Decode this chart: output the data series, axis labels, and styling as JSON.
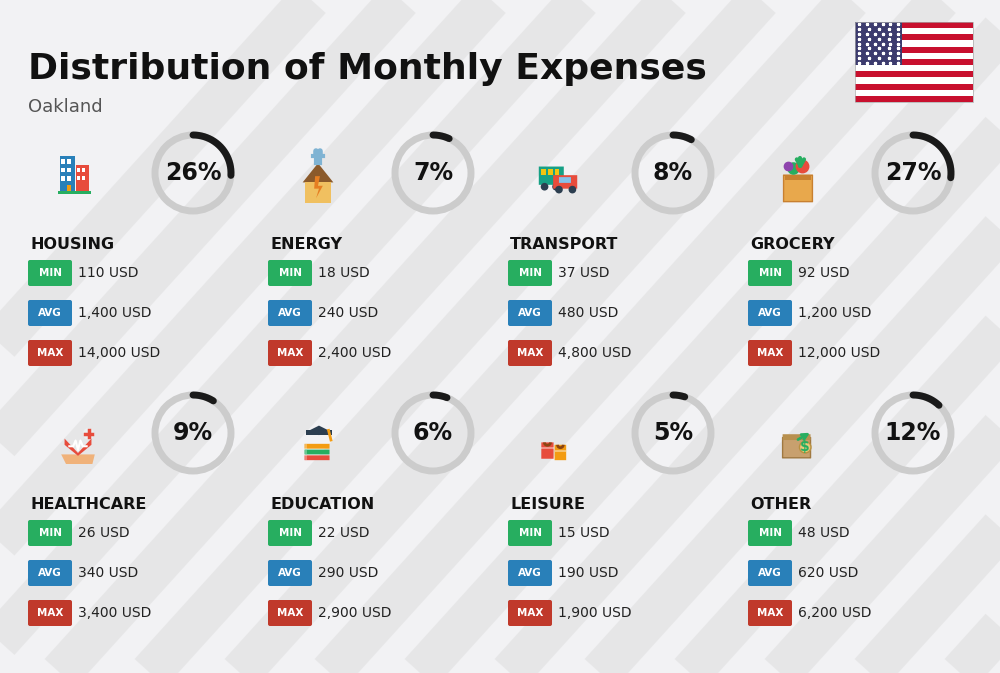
{
  "title": "Distribution of Monthly Expenses",
  "subtitle": "Oakland",
  "background_color": "#f2f2f4",
  "categories": [
    {
      "name": "HOUSING",
      "percent": 26,
      "min_val": "110 USD",
      "avg_val": "1,400 USD",
      "max_val": "14,000 USD",
      "row": 0,
      "col": 0
    },
    {
      "name": "ENERGY",
      "percent": 7,
      "min_val": "18 USD",
      "avg_val": "240 USD",
      "max_val": "2,400 USD",
      "row": 0,
      "col": 1
    },
    {
      "name": "TRANSPORT",
      "percent": 8,
      "min_val": "37 USD",
      "avg_val": "480 USD",
      "max_val": "4,800 USD",
      "row": 0,
      "col": 2
    },
    {
      "name": "GROCERY",
      "percent": 27,
      "min_val": "92 USD",
      "avg_val": "1,200 USD",
      "max_val": "12,000 USD",
      "row": 0,
      "col": 3
    },
    {
      "name": "HEALTHCARE",
      "percent": 9,
      "min_val": "26 USD",
      "avg_val": "340 USD",
      "max_val": "3,400 USD",
      "row": 1,
      "col": 0
    },
    {
      "name": "EDUCATION",
      "percent": 6,
      "min_val": "22 USD",
      "avg_val": "290 USD",
      "max_val": "2,900 USD",
      "row": 1,
      "col": 1
    },
    {
      "name": "LEISURE",
      "percent": 5,
      "min_val": "15 USD",
      "avg_val": "190 USD",
      "max_val": "1,900 USD",
      "row": 1,
      "col": 2
    },
    {
      "name": "OTHER",
      "percent": 12,
      "min_val": "48 USD",
      "avg_val": "620 USD",
      "max_val": "6,200 USD",
      "row": 1,
      "col": 3
    }
  ],
  "min_color": "#27ae60",
  "avg_color": "#2980b9",
  "max_color": "#c0392b",
  "arc_dark_color": "#1a1a1a",
  "arc_light_color": "#cccccc",
  "percent_fontsize": 17,
  "name_fontsize": 11.5,
  "value_fontsize": 10,
  "label_fontsize": 7.5,
  "title_fontsize": 26,
  "subtitle_fontsize": 13
}
